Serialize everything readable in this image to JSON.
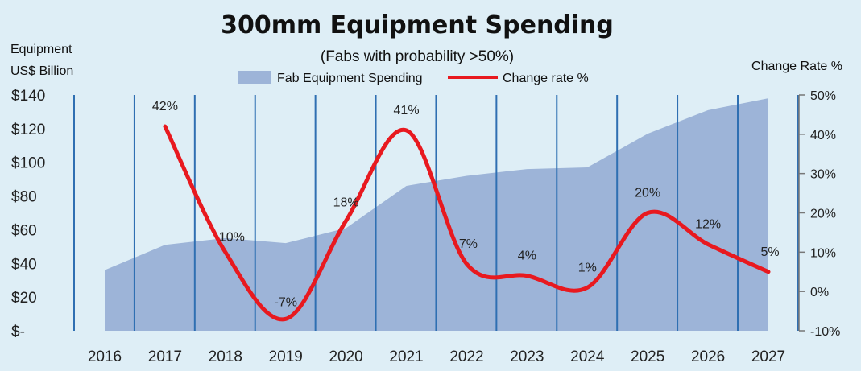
{
  "chart_data": {
    "type": "area+line",
    "title": "300mm Equipment Spending",
    "subtitle": "(Fabs with probability >50%)",
    "left_axis_title_line1": "Equipment",
    "left_axis_title_line2": "US$ Billion",
    "right_axis_title": "Change Rate %",
    "categories": [
      "2016",
      "2017",
      "2018",
      "2019",
      "2020",
      "2021",
      "2022",
      "2023",
      "2024",
      "2025",
      "2026",
      "2027"
    ],
    "left_ylim": [
      0,
      140
    ],
    "left_ticks": [
      "$-",
      "$20",
      "$40",
      "$60",
      "$80",
      "$100",
      "$120",
      "$140"
    ],
    "right_ylim": [
      -10,
      50
    ],
    "right_ticks": [
      "-10%",
      "0%",
      "10%",
      "20%",
      "30%",
      "40%",
      "50%"
    ],
    "series": [
      {
        "name": "Fab Equipment Spending",
        "type": "area",
        "axis": "left",
        "color": "#9db4d8",
        "values": [
          36,
          51,
          55,
          52,
          61,
          86,
          92,
          96,
          97,
          117,
          131,
          138
        ]
      },
      {
        "name": "Change rate %",
        "type": "line",
        "axis": "right",
        "color": "#e8191f",
        "values": [
          null,
          42,
          10,
          -7,
          18,
          41,
          7,
          4,
          1,
          20,
          12,
          5
        ],
        "labels": [
          "",
          "42%",
          "10%",
          "-7%",
          "18%",
          "41%",
          "7%",
          "4%",
          "1%",
          "20%",
          "12%",
          "5%"
        ]
      }
    ],
    "gridline_color": "#2f6fb2",
    "legend_position": "top"
  }
}
